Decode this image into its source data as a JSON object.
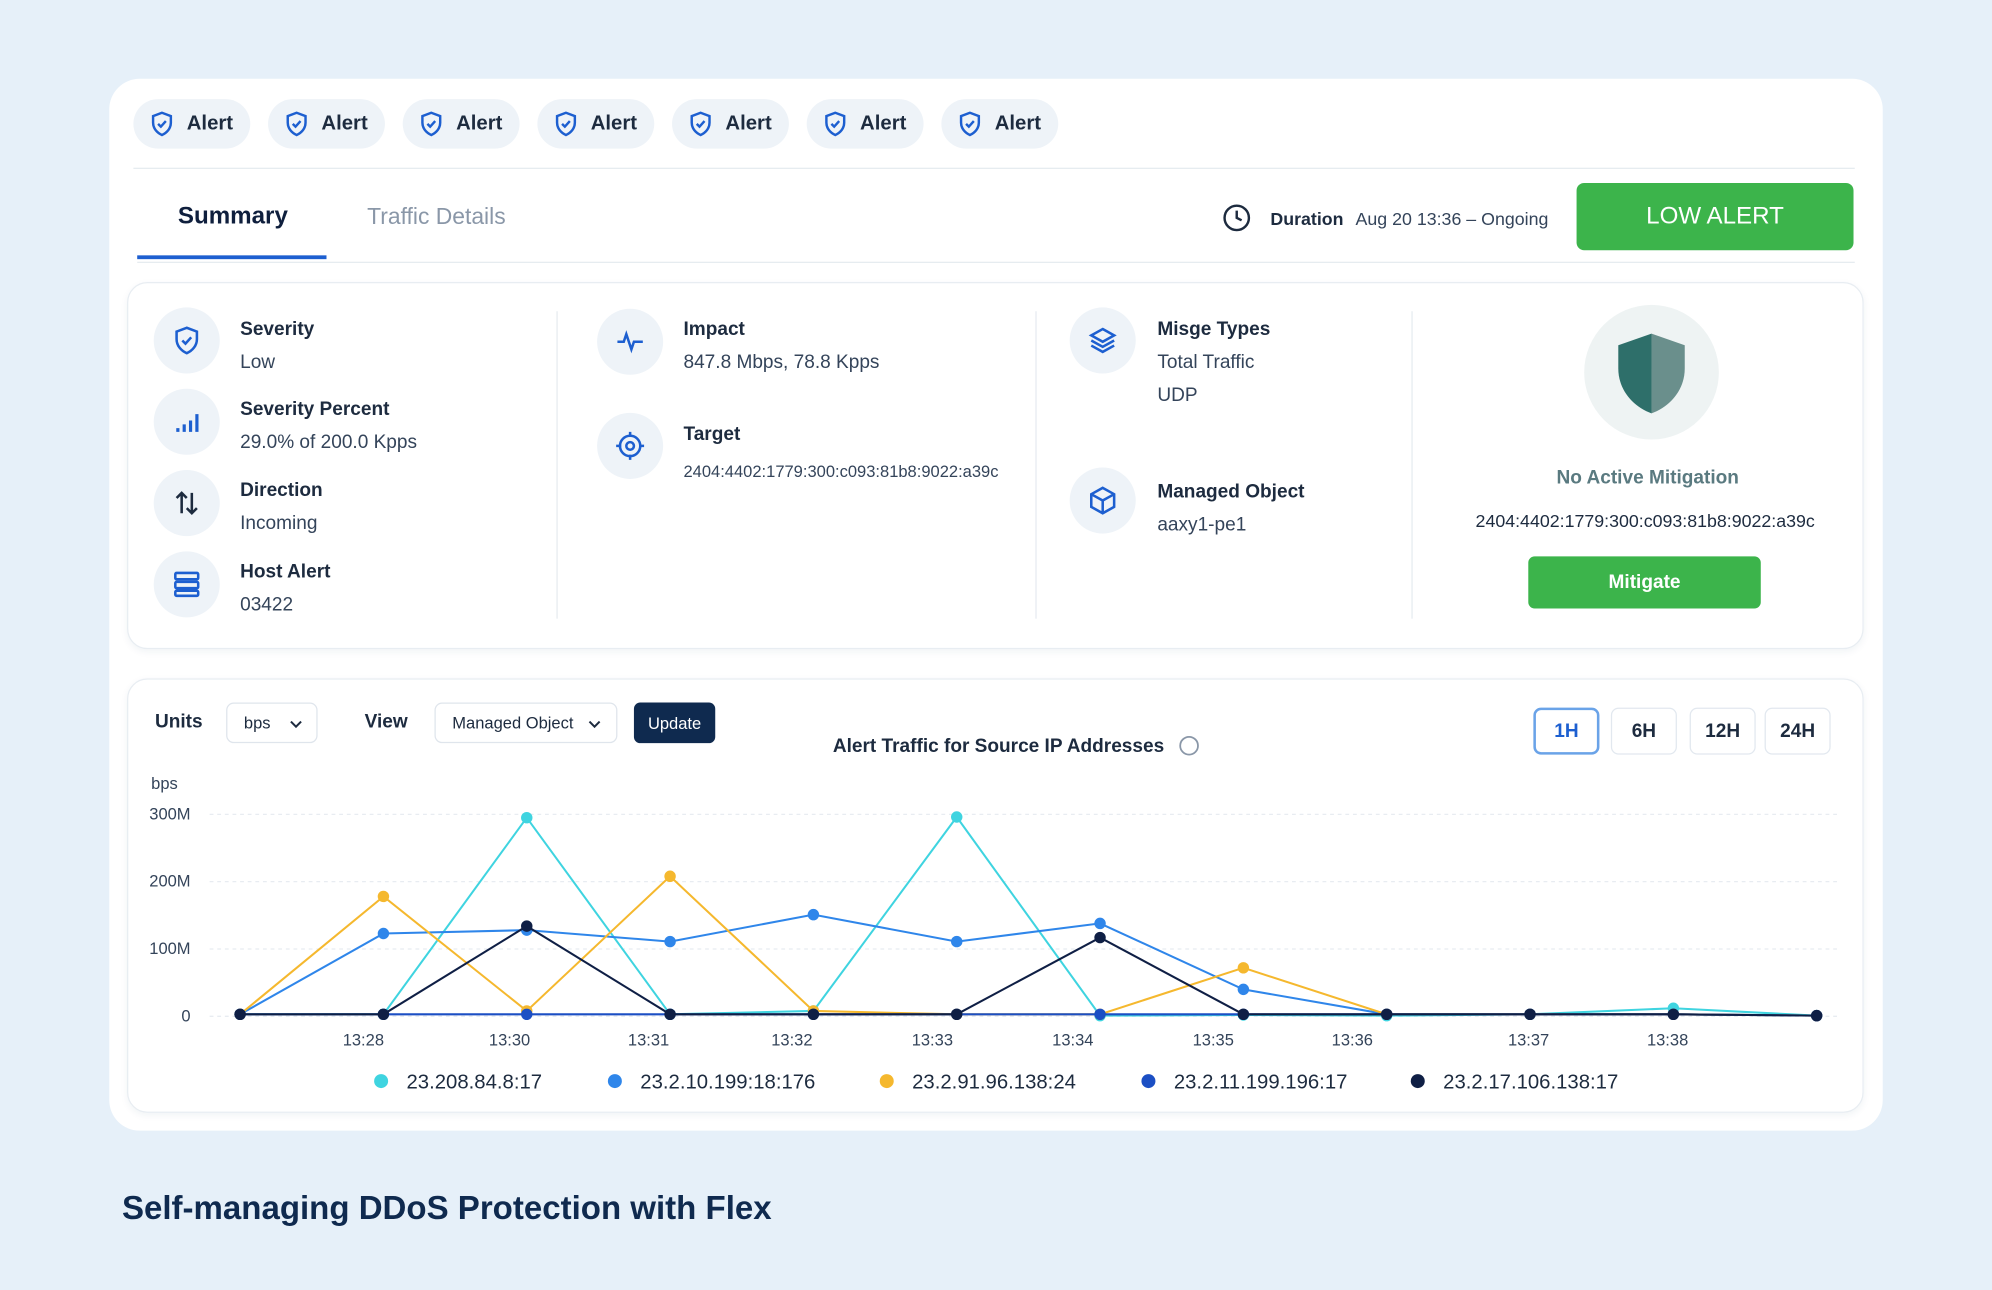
{
  "alert_tabs": [
    "Alert",
    "Alert",
    "Alert",
    "Alert",
    "Alert",
    "Alert",
    "Alert"
  ],
  "tabs": [
    "Summary",
    "Traffic Details"
  ],
  "duration": {
    "label": "Duration",
    "value": "Aug 20 13:36 – Ongoing"
  },
  "status": "LOW ALERT",
  "fields": [
    {
      "label": "Severity",
      "value": "Low"
    },
    {
      "label": "Severity Percent",
      "value": "29.0% of 200.0 Kpps"
    },
    {
      "label": "Direction",
      "value": "Incoming"
    },
    {
      "label": "Host Alert",
      "value": "03422"
    },
    {
      "label": "Impact",
      "value": "847.8 Mbps, 78.8 Kpps"
    },
    {
      "label": "Target",
      "value": "2404:4402:1779:300:c093:81b8:9022:a39c"
    },
    {
      "label": "Misge Types",
      "value": [
        "Total Traffic",
        "UDP"
      ]
    },
    {
      "label": "Managed Object",
      "value": "aaxy1-pe1"
    }
  ],
  "mitigation": {
    "title": "No Active Mitigation",
    "address": "2404:4402:1779:300:c093:81b8:9022:a39c",
    "button": "Mitigate"
  },
  "controls": {
    "units_label": "Units",
    "units": "bps",
    "view_label": "View",
    "view": "Managed Object",
    "update": "Update",
    "ranges": [
      "1H",
      "6H",
      "12H",
      "24H"
    ]
  },
  "chart_data": {
    "type": "line",
    "title": "Alert Traffic for Source IP Addresses",
    "y_label": "bps",
    "x": [
      0,
      1,
      2,
      3,
      4,
      5,
      6,
      7,
      8,
      9,
      10,
      11
    ],
    "xlim": [
      0,
      11
    ],
    "xticks": [
      {
        "value": 0.86,
        "label": "13:28"
      },
      {
        "value": 1.88,
        "label": "13:30"
      },
      {
        "value": 2.85,
        "label": "13:31"
      },
      {
        "value": 3.85,
        "label": "13:32"
      },
      {
        "value": 4.83,
        "label": "13:33"
      },
      {
        "value": 5.81,
        "label": "13:34"
      },
      {
        "value": 6.79,
        "label": "13:35"
      },
      {
        "value": 7.76,
        "label": "13:36"
      },
      {
        "value": 8.99,
        "label": "13:37"
      },
      {
        "value": 9.96,
        "label": "13:38"
      }
    ],
    "ylim": [
      0,
      300000000
    ],
    "yticks": [
      0,
      {
        "value": 100000000,
        "label": "100M"
      },
      {
        "value": 200000000,
        "label": "200M"
      },
      {
        "value": 300000000,
        "label": "300M"
      }
    ],
    "grid": true,
    "series": [
      {
        "name": "23.208.84.8:17",
        "color": "#3fd4e0",
        "values": [
          3000000,
          3000000,
          295000000,
          3000000,
          8000000,
          296000000,
          1000000,
          2000000,
          1000000,
          3000000,
          12000000,
          1000000
        ]
      },
      {
        "name": "23.2.10.199:18:176",
        "color": "#2f86ea",
        "values": [
          3000000,
          123000000,
          128000000,
          111000000,
          151000000,
          111000000,
          138000000,
          40000000,
          3000000,
          3000000,
          3000000,
          1000000
        ]
      },
      {
        "name": "23.2.91.96.138:24",
        "color": "#f5b82e",
        "values": [
          3000000,
          178000000,
          8000000,
          208000000,
          8000000,
          3000000,
          3000000,
          72000000,
          3000000,
          3000000,
          3000000,
          1000000
        ]
      },
      {
        "name": "23.2.11.199.196:17",
        "color": "#1c4fc4",
        "values": [
          3000000,
          3000000,
          3000000,
          3000000,
          3000000,
          3000000,
          3000000,
          3000000,
          3000000,
          3000000,
          3000000,
          1000000
        ]
      },
      {
        "name": "23.2.17.106.138:17",
        "color": "#0f1f45",
        "values": [
          3000000,
          3000000,
          134000000,
          3000000,
          3000000,
          3000000,
          117000000,
          3000000,
          3000000,
          3000000,
          3000000,
          1000000
        ]
      }
    ]
  },
  "caption": "Self-managing DDoS Protection with Flex"
}
